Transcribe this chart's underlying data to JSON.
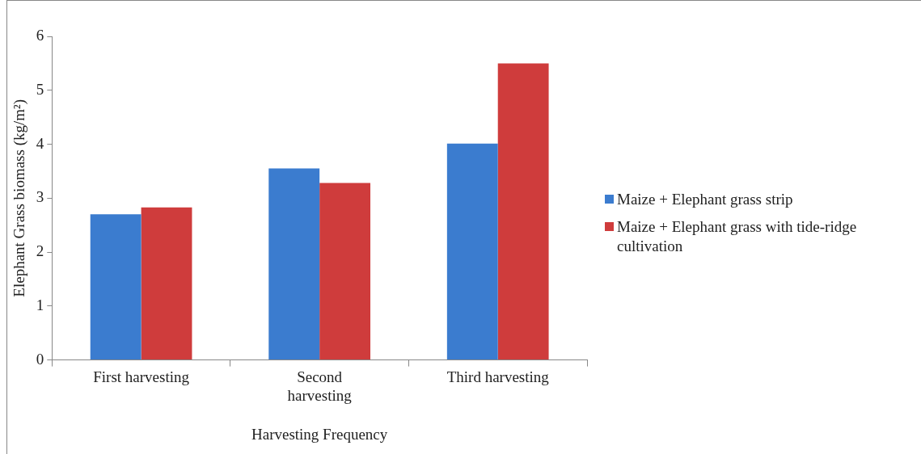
{
  "chart_data": {
    "type": "bar",
    "xlabel": "Harvesting Frequency",
    "ylabel": "Elephant Grass biomass (kg/m²)",
    "categories": [
      "First harvesting",
      "Second harvesting",
      "Third harvesting"
    ],
    "series": [
      {
        "name": "Maize + Elephant grass strip",
        "color": "#3b7ccf",
        "values": [
          2.7,
          3.55,
          4.01
        ]
      },
      {
        "name": "Maize + Elephant grass with tide-ridge cultivation",
        "color": "#cf3c3c",
        "values": [
          2.83,
          3.28,
          5.5
        ]
      }
    ],
    "ylim": [
      0,
      6
    ],
    "yticks": [
      0,
      1,
      2,
      3,
      4,
      5,
      6
    ],
    "legend": "right"
  }
}
